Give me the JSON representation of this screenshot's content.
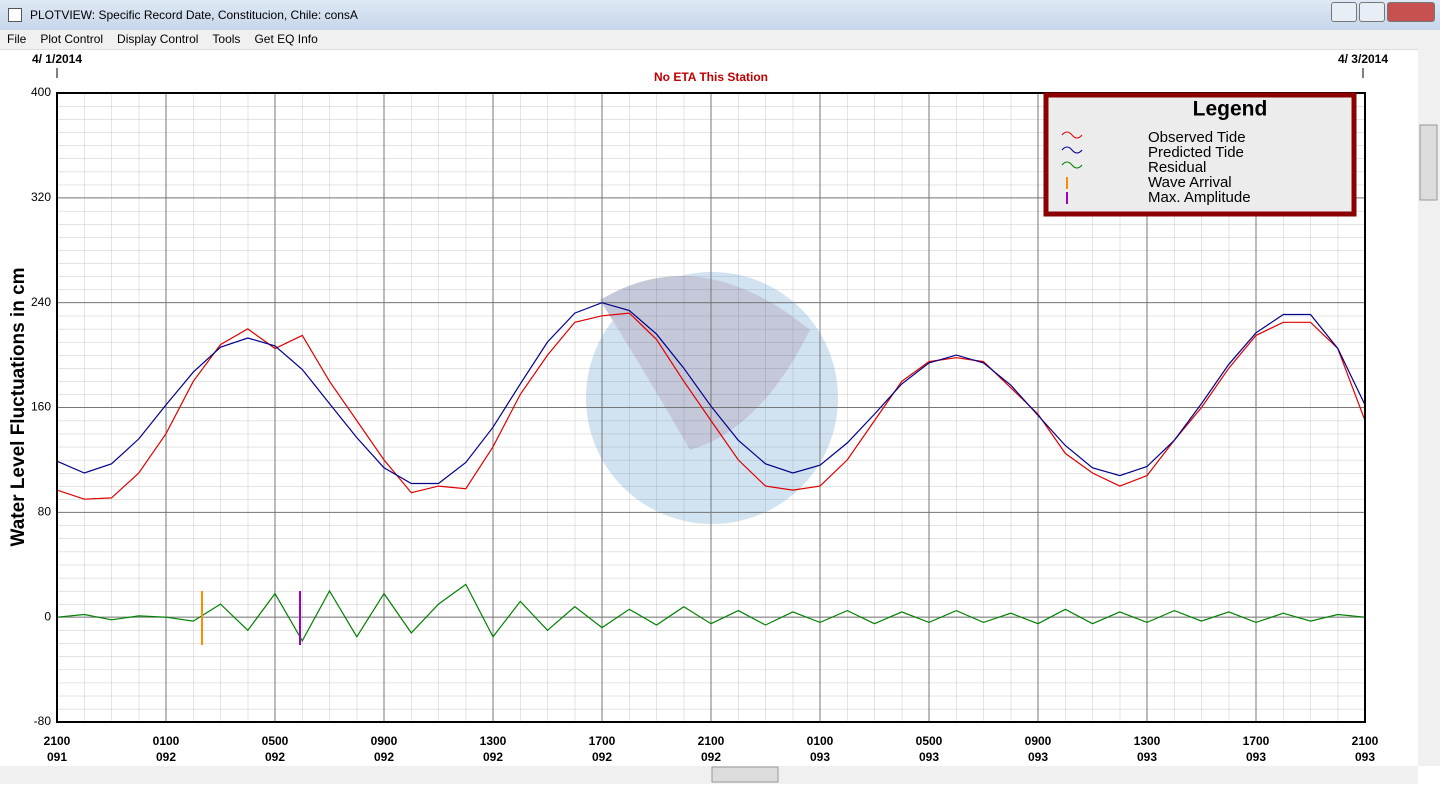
{
  "window": {
    "title": "PLOTVIEW: Specific Record Date, Constitucion, Chile: consA"
  },
  "menu": [
    "File",
    "Plot Control",
    "Display Control",
    "Tools",
    "Get EQ Info"
  ],
  "chart_data": {
    "type": "line",
    "start_date": "4/ 1/2014",
    "end_date": "4/ 3/2014",
    "subtitle": "No ETA This Station",
    "ylabel": "Water Level Fluctuations in cm",
    "categories": [
      "2100",
      null,
      null,
      null,
      "0100",
      null,
      null,
      null,
      "0500",
      null,
      null,
      null,
      "0900",
      null,
      null,
      null,
      "1300",
      null,
      null,
      null,
      "1700",
      null,
      null,
      null,
      "2100",
      null,
      null,
      null,
      "0100",
      null,
      null,
      null,
      "0500",
      null,
      null,
      null,
      "0900",
      null,
      null,
      null,
      "1300",
      null,
      null,
      null,
      "1700",
      null,
      null,
      null,
      "2100"
    ],
    "days": [
      "091",
      null,
      null,
      null,
      "092",
      null,
      null,
      null,
      "092",
      null,
      null,
      null,
      "092",
      null,
      null,
      null,
      "092",
      null,
      null,
      null,
      "092",
      null,
      null,
      null,
      "092",
      null,
      null,
      null,
      "093",
      null,
      null,
      null,
      "093",
      null,
      null,
      null,
      "093",
      null,
      null,
      null,
      "093",
      null,
      null,
      null,
      "093",
      null,
      null,
      null,
      "093"
    ],
    "series": [
      {
        "name": "Observed Tide",
        "color": "#e00000",
        "values": [
          97,
          90,
          91,
          110,
          140,
          180,
          208,
          220,
          205,
          215,
          180,
          150,
          120,
          95,
          100,
          98,
          130,
          170,
          200,
          225,
          230,
          232,
          212,
          180,
          150,
          120,
          100,
          97,
          100,
          120,
          150,
          180,
          195,
          198,
          195,
          175,
          155,
          125,
          110,
          100,
          108,
          135,
          160,
          190,
          215,
          225,
          225,
          205,
          150
        ]
      },
      {
        "name": "Predicted Tide",
        "color": "#00008b",
        "values": [
          119,
          110,
          117,
          136,
          162,
          187,
          206,
          213,
          207,
          189,
          163,
          137,
          114,
          102,
          102,
          118,
          145,
          178,
          210,
          232,
          240,
          234,
          216,
          190,
          161,
          135,
          117,
          110,
          116,
          133,
          155,
          178,
          194,
          200,
          194,
          177,
          154,
          131,
          114,
          108,
          115,
          135,
          163,
          193,
          217,
          231,
          231,
          205,
          162
        ]
      },
      {
        "name": "Residual",
        "color": "#008000",
        "values": [
          0,
          2,
          -2,
          1,
          0,
          -3,
          10,
          -10,
          18,
          -18,
          20,
          -15,
          18,
          -12,
          10,
          25,
          -15,
          12,
          -10,
          8,
          -8,
          6,
          -6,
          8,
          -5,
          5,
          -6,
          4,
          -4,
          5,
          -5,
          4,
          -4,
          5,
          -4,
          3,
          -5,
          6,
          -5,
          4,
          -4,
          5,
          -3,
          4,
          -4,
          3,
          -3,
          2,
          0
        ]
      }
    ],
    "markers": [
      {
        "name": "Wave Arrival",
        "color": "#ff8c00"
      },
      {
        "name": "Max. Amplitude",
        "color": "#a000c0"
      }
    ],
    "ylim": [
      -80,
      400
    ],
    "yticks": [
      -80,
      0,
      80,
      160,
      240,
      320,
      400
    ],
    "grid": true,
    "legend": {
      "title": "Legend",
      "position": "top-right"
    }
  }
}
